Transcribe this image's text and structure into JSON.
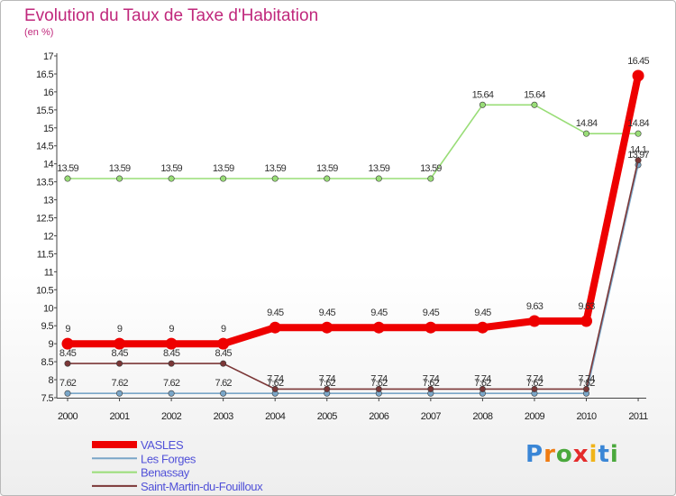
{
  "header": {
    "title": "Evolution du Taux de Taxe d'Habitation",
    "subtitle": "(en %)"
  },
  "logo": {
    "text": "Proxiti",
    "letter_colors": [
      "#3a86d6",
      "#f07c12",
      "#4aa83c",
      "#e42b2b",
      "#f0b41a",
      "#3a86d6",
      "#4aa83c"
    ]
  },
  "chart_data": {
    "type": "line",
    "title": "Evolution du Taux de Taxe d'Habitation",
    "ylabel": "(en %)",
    "xlabel": "",
    "categories": [
      "2000",
      "2001",
      "2002",
      "2003",
      "2004",
      "2005",
      "2006",
      "2007",
      "2008",
      "2009",
      "2010",
      "2011"
    ],
    "ylim": [
      7.5,
      17
    ],
    "yticks": [
      "7.5",
      "8",
      "8.5",
      "9",
      "9.5",
      "10",
      "10.5",
      "11",
      "11.5",
      "12",
      "12.5",
      "13",
      "13.5",
      "14",
      "14.5",
      "15",
      "15.5",
      "16",
      "16.5",
      "17"
    ],
    "grid": false,
    "legend_position": "bottom-left",
    "series": [
      {
        "name": "VASLES",
        "color": "#ee0000",
        "emphasis": true,
        "values": [
          9,
          9,
          9,
          9,
          9.45,
          9.45,
          9.45,
          9.45,
          9.45,
          9.63,
          9.63,
          16.45
        ],
        "labels": [
          "9",
          "9",
          "9",
          "9",
          "9.45",
          "9.45",
          "9.45",
          "9.45",
          "9.45",
          "9.63",
          "9.63",
          "16.45"
        ]
      },
      {
        "name": "Les Forges",
        "color": "#7aa6c8",
        "emphasis": false,
        "values": [
          7.62,
          7.62,
          7.62,
          7.62,
          7.62,
          7.62,
          7.62,
          7.62,
          7.62,
          7.62,
          7.62,
          13.97
        ],
        "labels": [
          "7.62",
          "7.62",
          "7.62",
          "7.62",
          "7.62",
          "7.62",
          "7.62",
          "7.62",
          "7.62",
          "7.62",
          "7.62",
          "13.97"
        ]
      },
      {
        "name": "Benassay",
        "color": "#99dd77",
        "emphasis": false,
        "values": [
          13.59,
          13.59,
          13.59,
          13.59,
          13.59,
          13.59,
          13.59,
          13.59,
          15.64,
          15.64,
          14.84,
          14.84
        ],
        "labels": [
          "13.59",
          "13.59",
          "13.59",
          "13.59",
          "13.59",
          "13.59",
          "13.59",
          "13.59",
          "15.64",
          "15.64",
          "14.84",
          "14.84"
        ]
      },
      {
        "name": "Saint-Martin-du-Fouilloux",
        "color": "#7b3737",
        "emphasis": false,
        "values": [
          8.45,
          8.45,
          8.45,
          8.45,
          7.74,
          7.74,
          7.74,
          7.74,
          7.74,
          7.74,
          7.74,
          14.1
        ],
        "labels": [
          "8.45",
          "8.45",
          "8.45",
          "8.45",
          "7.74",
          "7.74",
          "7.74",
          "7.74",
          "7.74",
          "7.74",
          "7.74",
          "14.1"
        ]
      }
    ]
  }
}
